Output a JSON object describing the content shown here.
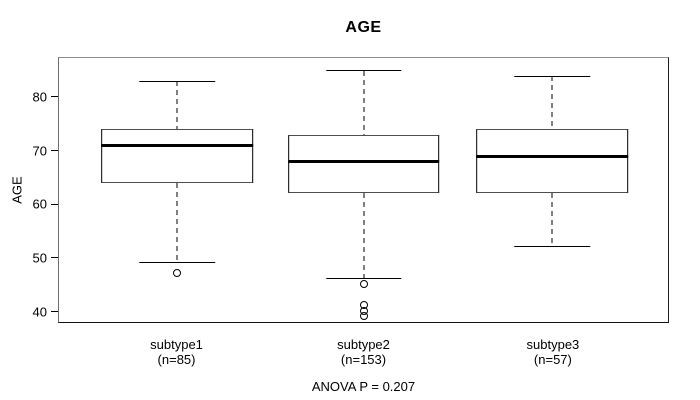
{
  "chart_data": {
    "type": "boxplot",
    "title": "AGE",
    "ylabel": "AGE",
    "footer": "ANOVA P = 0.207",
    "ylim": [
      37.9,
      87.4
    ],
    "yticks": [
      40,
      50,
      60,
      70,
      80
    ],
    "grid": false,
    "groups": [
      {
        "label": "subtype1",
        "sublabel": "(n=85)",
        "whisker_low": 49,
        "q1": 64,
        "median": 71,
        "q3": 74,
        "whisker_high": 83,
        "outliers": [
          47
        ]
      },
      {
        "label": "subtype2",
        "sublabel": "(n=153)",
        "whisker_low": 46,
        "q1": 62,
        "median": 68,
        "q3": 73,
        "whisker_high": 85,
        "outliers": [
          45,
          41,
          40,
          39
        ]
      },
      {
        "label": "subtype3",
        "sublabel": "(n=57)",
        "whisker_low": 52,
        "q1": 62,
        "median": 69,
        "q3": 74,
        "whisker_high": 84,
        "outliers": []
      }
    ],
    "layout": {
      "centers_pct": [
        19.4,
        50.0,
        81.0
      ],
      "box_width_pct": 24.9,
      "cap_width_pct": 12.4
    },
    "colors": {
      "stroke": "#000000",
      "background": "#ffffff"
    }
  }
}
